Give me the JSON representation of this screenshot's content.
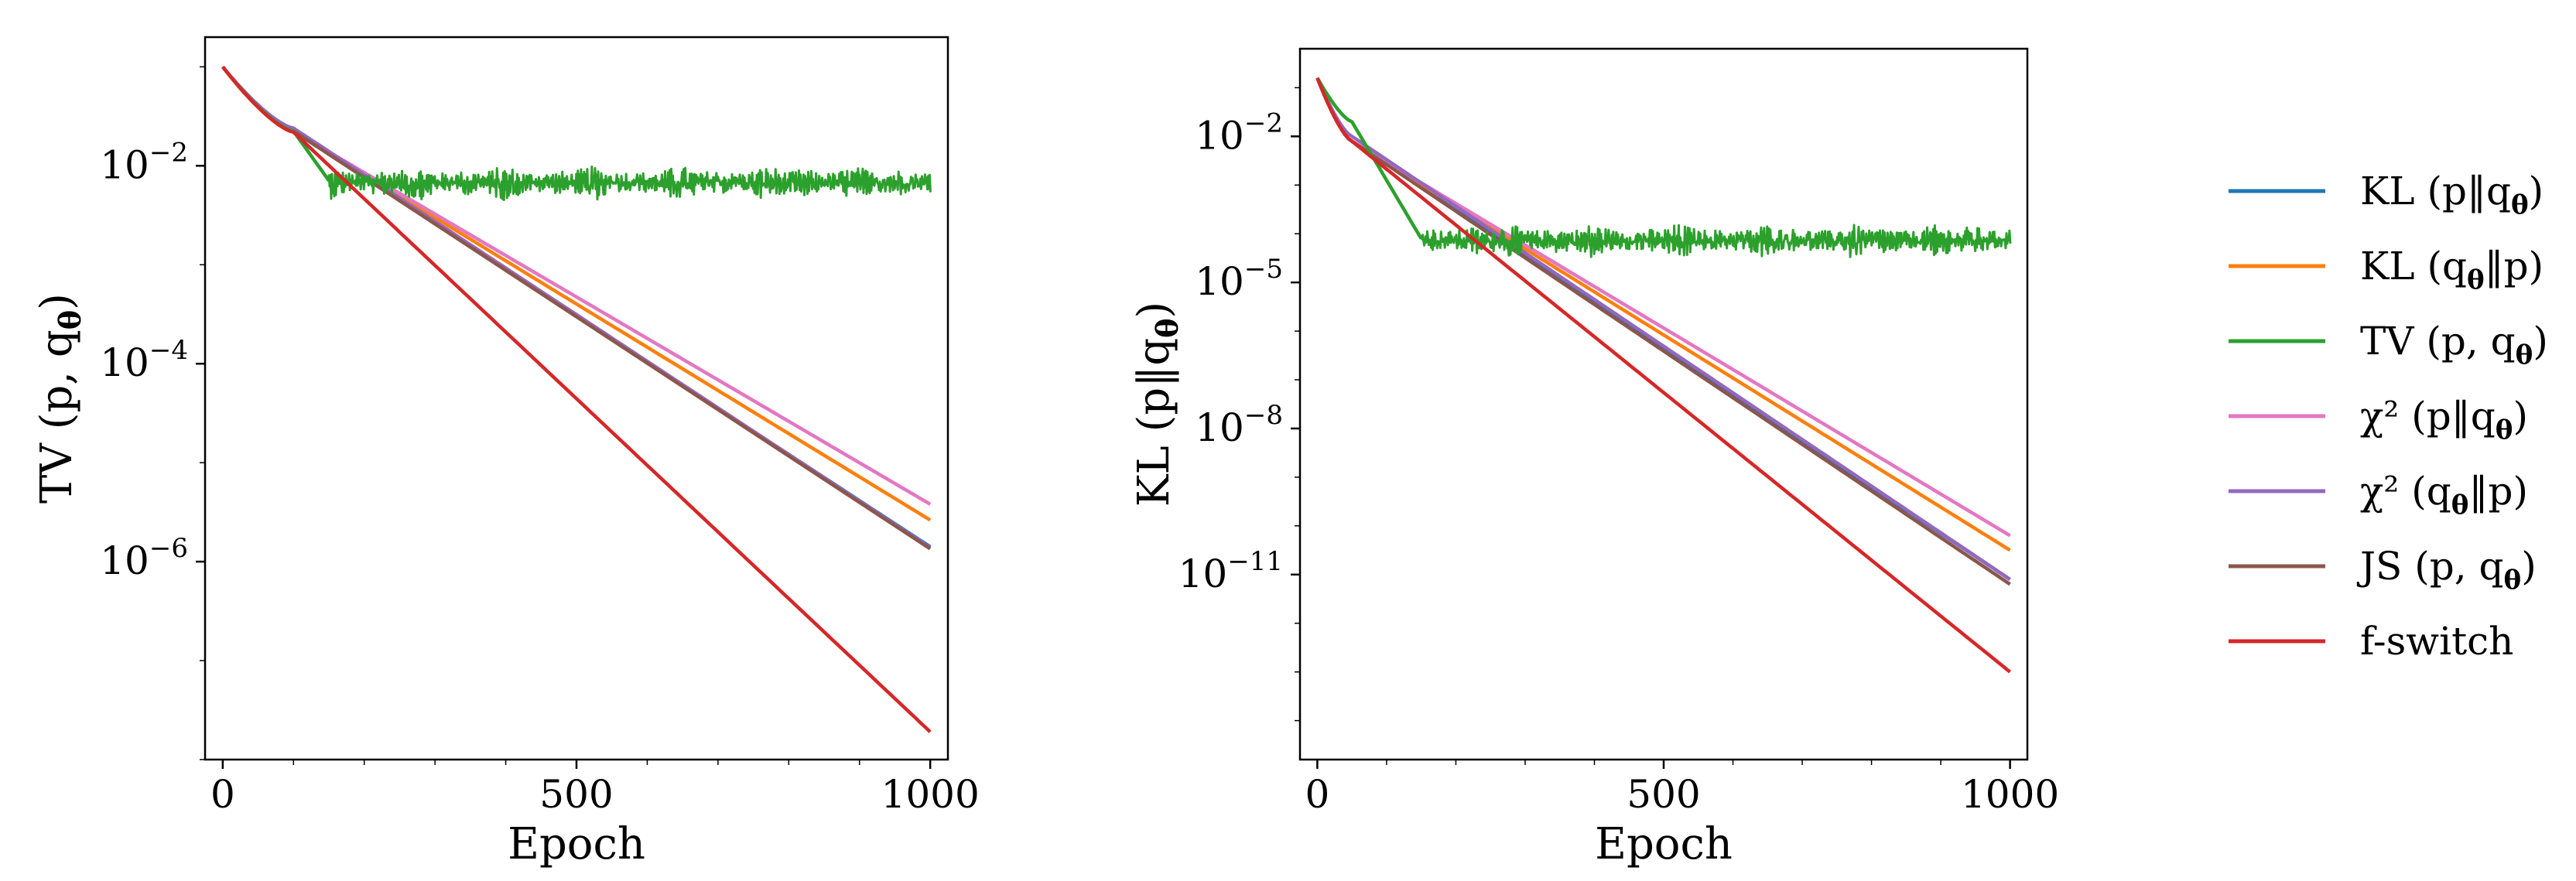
{
  "chart_data": [
    {
      "type": "line",
      "xlabel": "Epoch",
      "ylabel": "TV (p, q_θ)",
      "ylabel_parts": [
        "TV",
        "(p, q",
        "θ",
        ")"
      ],
      "xlim": [
        0,
        1000
      ],
      "yscale": "log",
      "ylim_log10": [
        -8.0,
        -0.7
      ],
      "xticks": [
        {
          "v": 0,
          "label": "0"
        },
        {
          "v": 500,
          "label": "500"
        },
        {
          "v": 1000,
          "label": "1000"
        }
      ],
      "yticks": [
        {
          "exp": -2,
          "base": "10",
          "sup": "−2"
        },
        {
          "exp": -4,
          "base": "10",
          "sup": "−4"
        },
        {
          "exp": -6,
          "base": "10",
          "sup": "−6"
        }
      ],
      "series": [
        {
          "name": "KL (p‖q_θ)",
          "color": "#1f77b4",
          "start_log10": -1.0,
          "bend_epoch": 100,
          "bend_log10": -1.65,
          "end_log10": -5.85,
          "noisy": false
        },
        {
          "name": "KL (q_θ‖p)",
          "color": "#ff7f0e",
          "start_log10": -1.0,
          "bend_epoch": 100,
          "bend_log10": -1.65,
          "end_log10": -5.58,
          "noisy": false
        },
        {
          "name": "TV (p, q_θ)",
          "color": "#2ca02c",
          "start_log10": -1.0,
          "bend_epoch": 100,
          "bend_log10": -1.65,
          "plateau_epoch": 150,
          "plateau_log10": -2.15,
          "noisy": true
        },
        {
          "name": "χ² (p‖q_θ)",
          "color": "#e377c2",
          "start_log10": -1.0,
          "bend_epoch": 100,
          "bend_log10": -1.65,
          "end_log10": -5.42,
          "noisy": false
        },
        {
          "name": "χ² (q_θ‖p)",
          "color": "#9467bd",
          "start_log10": -1.0,
          "bend_epoch": 100,
          "bend_log10": -1.62,
          "end_log10": -5.86,
          "noisy": false
        },
        {
          "name": "JS (p, q_θ)",
          "color": "#8c564b",
          "start_log10": -1.0,
          "bend_epoch": 100,
          "bend_log10": -1.65,
          "end_log10": -5.87,
          "noisy": false
        },
        {
          "name": "f-switch",
          "color": "#d62728",
          "start_log10": -1.0,
          "bend_epoch": 100,
          "bend_log10": -1.66,
          "end_log10": -7.72,
          "noisy": false
        }
      ]
    },
    {
      "type": "line",
      "xlabel": "Epoch",
      "ylabel": "KL (p‖q_θ)",
      "ylabel_parts": [
        "KL",
        "(p‖q",
        "θ",
        ")"
      ],
      "xlim": [
        0,
        1000
      ],
      "yscale": "log",
      "ylim_log10": [
        -14.8,
        -0.2
      ],
      "xticks": [
        {
          "v": 0,
          "label": "0"
        },
        {
          "v": 500,
          "label": "500"
        },
        {
          "v": 1000,
          "label": "1000"
        }
      ],
      "yticks": [
        {
          "exp": -2,
          "base": "10",
          "sup": "−2"
        },
        {
          "exp": -5,
          "base": "10",
          "sup": "−5"
        },
        {
          "exp": -8,
          "base": "10",
          "sup": "−8"
        },
        {
          "exp": -11,
          "base": "10",
          "sup": "−11"
        }
      ],
      "series": [
        {
          "name": "KL (p‖q_θ)",
          "color": "#1f77b4",
          "start_log10": -0.8,
          "bend_epoch": 50,
          "bend_log10": -2.1,
          "end_log10": -11.1,
          "noisy": false
        },
        {
          "name": "KL (q_θ‖p)",
          "color": "#ff7f0e",
          "start_log10": -0.8,
          "bend_epoch": 50,
          "bend_log10": -2.1,
          "end_log10": -10.5,
          "noisy": false
        },
        {
          "name": "TV (p, q_θ)",
          "color": "#2ca02c",
          "start_log10": -0.8,
          "bend_epoch": 50,
          "bend_log10": -1.7,
          "plateau_epoch": 150,
          "plateau_log10": -4.1,
          "noisy": true
        },
        {
          "name": "χ² (p‖q_θ)",
          "color": "#e377c2",
          "start_log10": -0.8,
          "bend_epoch": 50,
          "bend_log10": -2.1,
          "end_log10": -10.2,
          "noisy": false
        },
        {
          "name": "χ² (q_θ‖p)",
          "color": "#9467bd",
          "start_log10": -0.8,
          "bend_epoch": 50,
          "bend_log10": -2.0,
          "end_log10": -11.1,
          "noisy": false
        },
        {
          "name": "JS (p, q_θ)",
          "color": "#8c564b",
          "start_log10": -0.8,
          "bend_epoch": 50,
          "bend_log10": -2.1,
          "end_log10": -11.2,
          "noisy": false
        },
        {
          "name": "f-switch",
          "color": "#d62728",
          "start_log10": -0.8,
          "bend_epoch": 50,
          "bend_log10": -2.1,
          "end_log10": -13.0,
          "noisy": false
        }
      ]
    }
  ],
  "legend": {
    "placement": "right",
    "entries": [
      {
        "parts": [
          "KL",
          "(p‖q",
          "θ",
          ")"
        ],
        "label": "KL (p‖q_θ)",
        "color": "#1f77b4"
      },
      {
        "parts": [
          "KL",
          "(q",
          "θ",
          "‖p)"
        ],
        "label": "KL (q_θ‖p)",
        "color": "#ff7f0e"
      },
      {
        "parts": [
          "TV",
          "(p, q",
          "θ",
          ")"
        ],
        "label": "TV (p, q_θ)",
        "color": "#2ca02c"
      },
      {
        "parts": [
          "χ²",
          "(p‖q",
          "θ",
          ")"
        ],
        "label": "χ² (p‖q_θ)",
        "color": "#e377c2"
      },
      {
        "parts": [
          "χ²",
          "(q",
          "θ",
          "‖p)"
        ],
        "label": "χ² (q_θ‖p)",
        "color": "#9467bd"
      },
      {
        "parts": [
          "JS",
          "(p, q",
          "θ",
          ")"
        ],
        "label": "JS (p, q_θ)",
        "color": "#8c564b"
      },
      {
        "parts": [
          "f-switch",
          "",
          "",
          ""
        ],
        "label": "f-switch",
        "color": "#d62728"
      }
    ]
  }
}
